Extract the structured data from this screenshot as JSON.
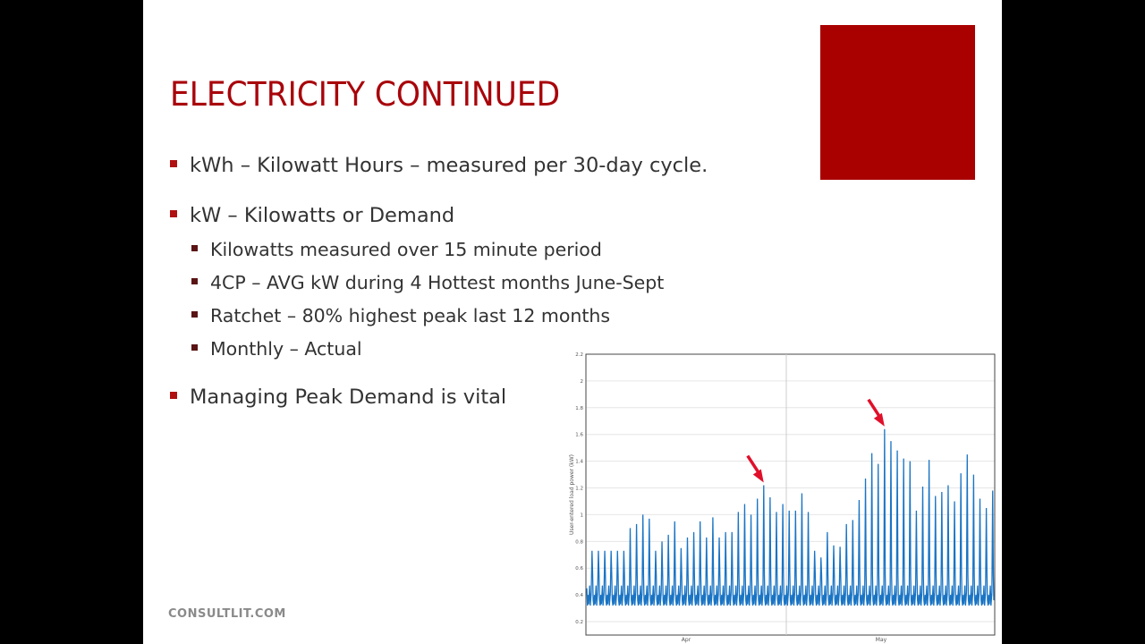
{
  "slide": {
    "title": "ELECTRICITY CONTINUED",
    "bullets": [
      {
        "text": "kWh – Kilowatt Hours – measured per 30-day cycle."
      },
      {
        "text": "kW – Kilowatts or Demand",
        "sub": [
          "Kilowatts measured over 15 minute period",
          "4CP – AVG kW during 4 Hottest months June-Sept",
          "Ratchet – 80% highest peak last 12 months",
          "Monthly – Actual"
        ]
      },
      {
        "text": "Managing Peak Demand is vital"
      }
    ],
    "footer": "CONSULTLIT.COM",
    "accent_color": "#a8050b",
    "box_color": "#a90000"
  },
  "chart_data": {
    "type": "line",
    "title": "",
    "xlabel": "",
    "ylabel": "User-entered load power (kW)",
    "ylim": [
      0.1,
      2.2
    ],
    "yticks": [
      "0.2",
      "0.4",
      "0.6",
      "0.8",
      "1",
      "1.2",
      "1.4",
      "1.6",
      "1.8",
      "2",
      "2.2"
    ],
    "xticks": [
      "Apr",
      "May"
    ],
    "grid": true,
    "line_color": "#1a74c4",
    "annotation_color": "#e0102a",
    "baseline_kw": 0.32,
    "daily_peaks_kw": [
      0.73,
      0.73,
      0.73,
      0.73,
      0.73,
      0.73,
      0.9,
      0.93,
      1.0,
      0.97,
      0.73,
      0.8,
      0.85,
      0.95,
      0.75,
      0.83,
      0.87,
      0.95,
      0.83,
      0.98,
      0.83,
      0.87,
      0.87,
      1.02,
      1.08,
      1.0,
      1.12,
      1.22,
      1.13,
      1.02,
      1.08,
      1.03,
      1.03,
      1.16,
      1.02,
      0.73,
      0.68,
      0.87,
      0.77,
      0.76,
      0.93,
      0.96,
      1.11,
      1.27,
      1.46,
      1.38,
      1.64,
      1.55,
      1.48,
      1.42,
      1.4,
      1.03,
      1.21,
      1.41,
      1.14,
      1.17,
      1.22,
      1.1,
      1.31,
      1.45,
      1.3,
      1.12,
      1.05,
      1.18
    ],
    "annotated_peaks_kw": [
      1.22,
      1.64
    ]
  }
}
